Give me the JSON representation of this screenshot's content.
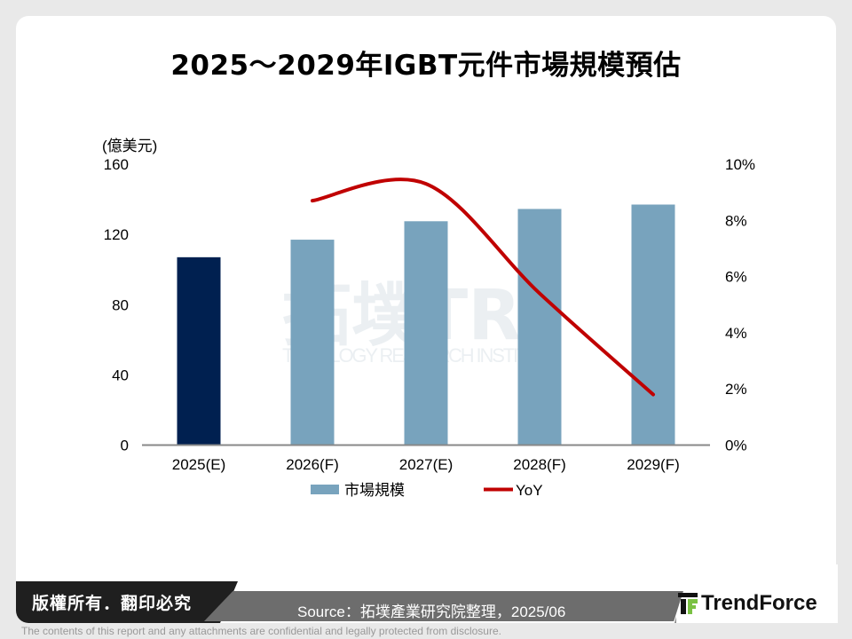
{
  "title": "2025～2029年IGBT元件市場規模預估",
  "chart_data": {
    "type": "bar+line",
    "categories": [
      "2025(E)",
      "2026(F)",
      "2027(E)",
      "2028(F)",
      "2029(F)"
    ],
    "series": [
      {
        "name": "市場規模",
        "type": "bar",
        "axis": "left",
        "values": [
          107,
          117,
          127.5,
          134.5,
          137
        ],
        "colors": [
          "#002050",
          "#78a3bd",
          "#78a3bd",
          "#78a3bd",
          "#78a3bd"
        ]
      },
      {
        "name": "YoY",
        "type": "line",
        "axis": "right",
        "values": [
          null,
          8.7,
          9.3,
          5.4,
          1.8
        ],
        "color": "#c00000"
      }
    ],
    "ylabel": "(億美元)",
    "ylim": [
      0,
      160
    ],
    "yticks": [
      "0",
      "40",
      "80",
      "120",
      "160"
    ],
    "y2lim": [
      0,
      10
    ],
    "y2ticks": [
      "0%",
      "2%",
      "4%",
      "6%",
      "8%",
      "10%"
    ],
    "grid": false,
    "legend": "bottom"
  },
  "watermark": "拓墣TRi TOPOLOGY RESEARCH INSTITUTE",
  "footer": {
    "copyright": "版權所有．翻印必究",
    "source": "Source：拓墣產業研究院整理，2025/06",
    "logo": "TrendForce",
    "disclaimer": "The contents of this report and any attachments are confidential and legally protected from disclosure."
  }
}
